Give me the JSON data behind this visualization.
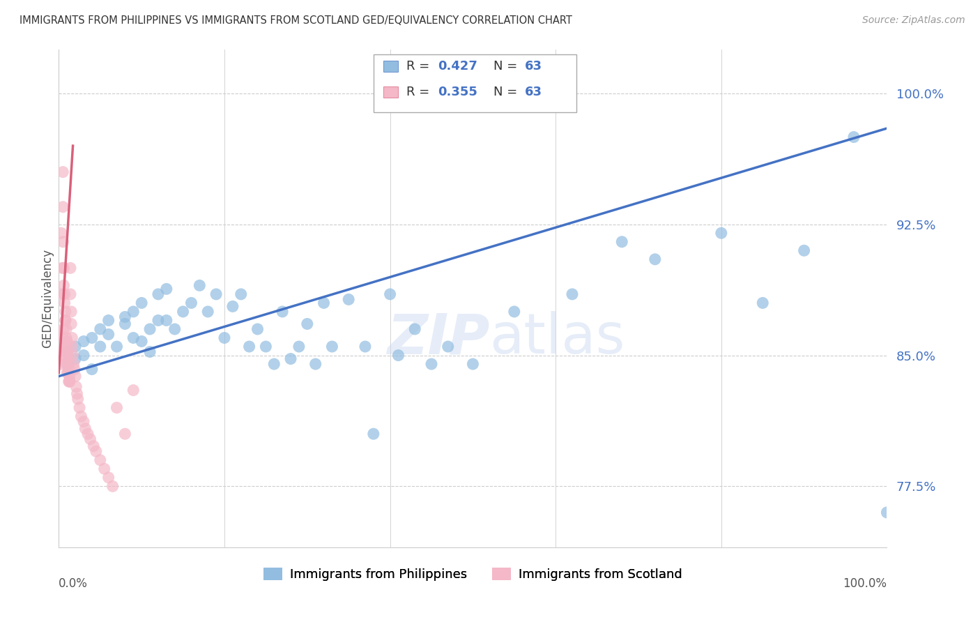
{
  "title": "IMMIGRANTS FROM PHILIPPINES VS IMMIGRANTS FROM SCOTLAND GED/EQUIVALENCY CORRELATION CHART",
  "source": "Source: ZipAtlas.com",
  "xlabel_bottom_left": "0.0%",
  "xlabel_bottom_right": "100.0%",
  "ylabel": "GED/Equivalency",
  "yticks": [
    77.5,
    85.0,
    92.5,
    100.0
  ],
  "ytick_labels": [
    "77.5%",
    "85.0%",
    "92.5%",
    "100.0%"
  ],
  "xlim": [
    0.0,
    1.0
  ],
  "ylim": [
    74.0,
    102.5
  ],
  "watermark": "ZIPatlas",
  "blue_color": "#92bde0",
  "blue_edge_color": "#92bde0",
  "blue_line_color": "#4472c4",
  "pink_color": "#f4b8c8",
  "pink_edge_color": "#f4b8c8",
  "pink_line_color": "#d9607a",
  "blue_scatter_x": [
    0.01,
    0.01,
    0.02,
    0.02,
    0.03,
    0.03,
    0.04,
    0.04,
    0.05,
    0.05,
    0.06,
    0.06,
    0.07,
    0.08,
    0.08,
    0.09,
    0.09,
    0.1,
    0.1,
    0.11,
    0.11,
    0.12,
    0.12,
    0.13,
    0.13,
    0.14,
    0.15,
    0.16,
    0.17,
    0.18,
    0.19,
    0.2,
    0.21,
    0.22,
    0.23,
    0.24,
    0.25,
    0.26,
    0.27,
    0.28,
    0.29,
    0.3,
    0.31,
    0.32,
    0.33,
    0.35,
    0.37,
    0.38,
    0.4,
    0.41,
    0.43,
    0.45,
    0.47,
    0.5,
    0.55,
    0.62,
    0.68,
    0.72,
    0.8,
    0.85,
    0.9,
    0.96,
    1.0
  ],
  "blue_scatter_y": [
    84.5,
    85.2,
    84.8,
    85.5,
    85.0,
    85.8,
    84.2,
    86.0,
    85.5,
    86.5,
    86.2,
    87.0,
    85.5,
    86.8,
    87.2,
    86.0,
    87.5,
    88.0,
    85.8,
    86.5,
    85.2,
    87.0,
    88.5,
    87.0,
    88.8,
    86.5,
    87.5,
    88.0,
    89.0,
    87.5,
    88.5,
    86.0,
    87.8,
    88.5,
    85.5,
    86.5,
    85.5,
    84.5,
    87.5,
    84.8,
    85.5,
    86.8,
    84.5,
    88.0,
    85.5,
    88.2,
    85.5,
    80.5,
    88.5,
    85.0,
    86.5,
    84.5,
    85.5,
    84.5,
    87.5,
    88.5,
    91.5,
    90.5,
    92.0,
    88.0,
    91.0,
    97.5,
    76.0
  ],
  "pink_scatter_x": [
    0.002,
    0.003,
    0.003,
    0.004,
    0.004,
    0.005,
    0.005,
    0.005,
    0.006,
    0.006,
    0.007,
    0.007,
    0.008,
    0.008,
    0.009,
    0.009,
    0.01,
    0.01,
    0.01,
    0.011,
    0.011,
    0.012,
    0.012,
    0.013,
    0.013,
    0.014,
    0.014,
    0.015,
    0.015,
    0.016,
    0.016,
    0.017,
    0.018,
    0.019,
    0.02,
    0.021,
    0.022,
    0.023,
    0.025,
    0.027,
    0.03,
    0.032,
    0.035,
    0.038,
    0.042,
    0.045,
    0.05,
    0.055,
    0.06,
    0.065,
    0.07,
    0.08,
    0.09,
    0.01,
    0.012,
    0.008,
    0.006,
    0.005,
    0.004,
    0.007,
    0.009,
    0.011,
    0.013
  ],
  "pink_scatter_y": [
    84.5,
    85.2,
    92.0,
    90.0,
    88.5,
    95.5,
    93.5,
    91.5,
    90.0,
    89.0,
    88.5,
    88.0,
    87.5,
    87.0,
    86.5,
    86.0,
    85.5,
    85.2,
    85.8,
    85.0,
    84.8,
    84.5,
    84.2,
    83.8,
    83.5,
    90.0,
    88.5,
    87.5,
    86.8,
    86.0,
    85.5,
    85.0,
    84.5,
    84.2,
    83.8,
    83.2,
    82.8,
    82.5,
    82.0,
    81.5,
    81.2,
    80.8,
    80.5,
    80.2,
    79.8,
    79.5,
    79.0,
    78.5,
    78.0,
    77.5,
    82.0,
    80.5,
    83.0,
    84.0,
    83.5,
    87.0,
    86.5,
    86.0,
    85.0,
    85.5,
    84.5,
    84.0,
    83.5
  ],
  "blue_trend_x": [
    0.0,
    1.0
  ],
  "blue_trend_y": [
    83.8,
    98.0
  ],
  "pink_trend_x": [
    0.0,
    0.017
  ],
  "pink_trend_y": [
    84.0,
    97.0
  ],
  "legend_bottom": [
    "Immigrants from Philippines",
    "Immigrants from Scotland"
  ],
  "grid_color": "#cccccc",
  "background_color": "#ffffff",
  "legend_R1": "0.427",
  "legend_N1": "63",
  "legend_R2": "0.355",
  "legend_N2": "63"
}
